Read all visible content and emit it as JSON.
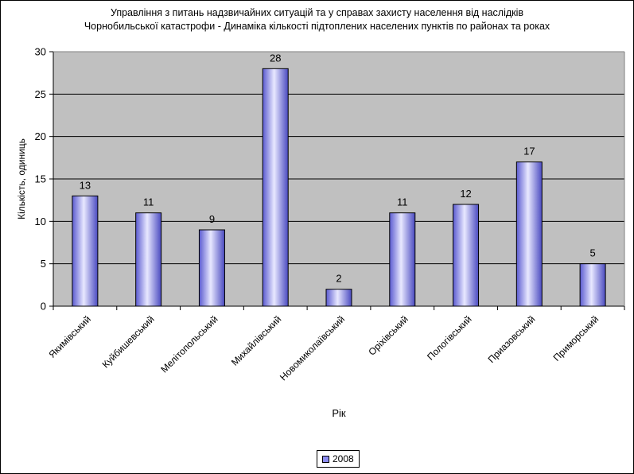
{
  "chart_data": {
    "type": "bar",
    "title": [
      "Управління з питань надзвичайних ситуацій та у справах захисту населення від наслідків",
      "Чорнобильської катастрофи - Динаміка кількості підтоплених населених пунктів по районах та роках"
    ],
    "xlabel": "Рік",
    "ylabel": "Кількість, одиниць",
    "ylim": [
      0,
      30
    ],
    "yticks": [
      0,
      5,
      10,
      15,
      20,
      25,
      30
    ],
    "grid": true,
    "legend_position": "bottom",
    "categories": [
      "Якимівський",
      "Куйбишевський",
      "Мелітопольський",
      "Михайлівський",
      "Новомиколаївський",
      "Оріхівський",
      "Пологівський",
      "Приазовський",
      "Приморський"
    ],
    "series": [
      {
        "name": "2008",
        "values": [
          13,
          11,
          9,
          28,
          2,
          11,
          12,
          17,
          5
        ],
        "color": "#8c8cf0"
      }
    ],
    "colors": {
      "plot_background": "#c0c0c0",
      "bar_fill": "#8c8cf0",
      "gridline": "#000000"
    }
  }
}
